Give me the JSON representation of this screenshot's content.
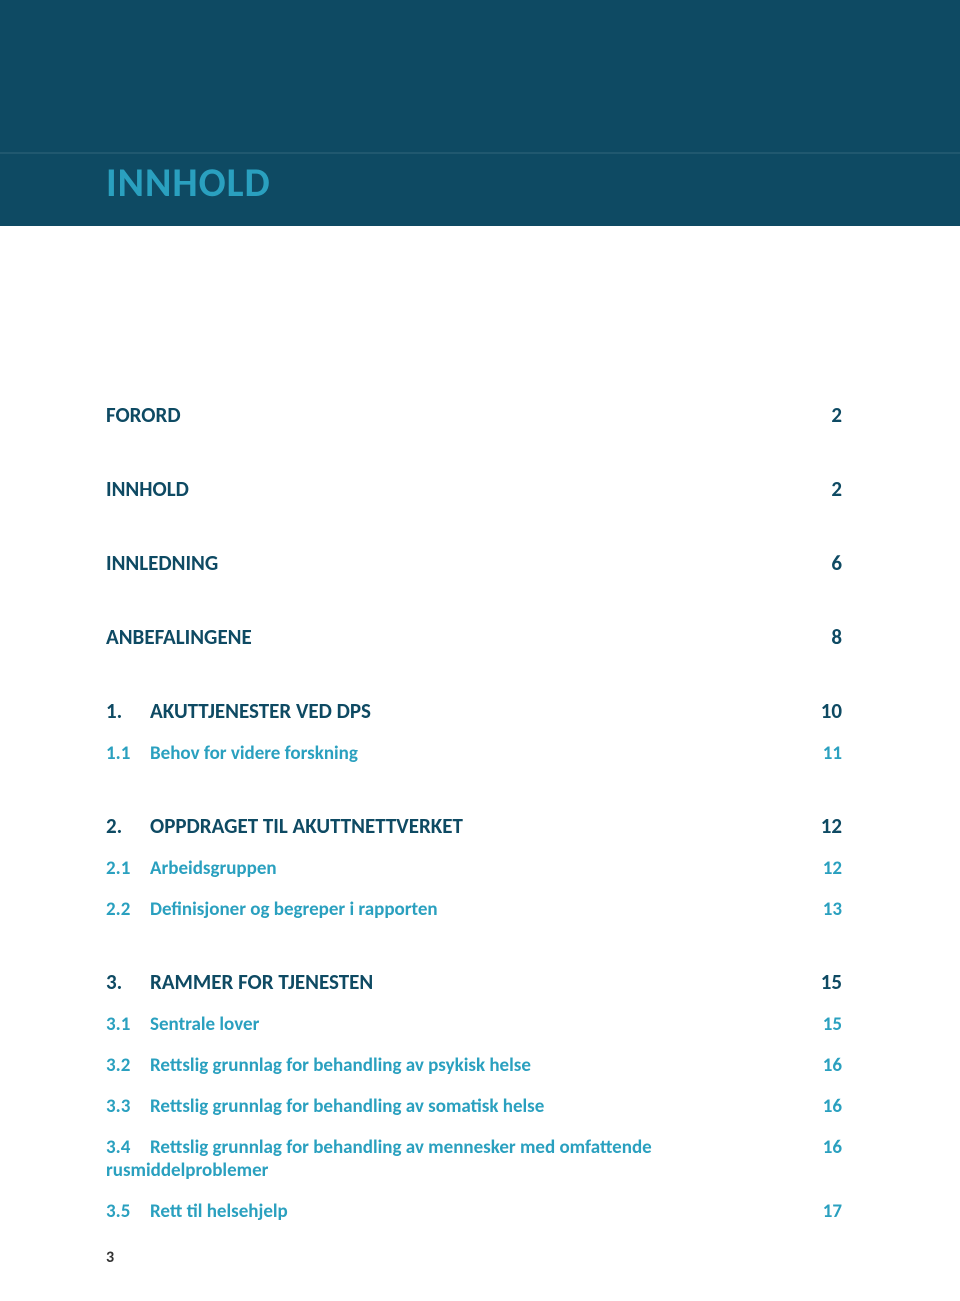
{
  "header": {
    "title": "INNHOLD",
    "banner_bg": "#0e4a63",
    "title_color": "#2aa0bf"
  },
  "colors": {
    "level0": "#0e4a63",
    "level1": "#0e4a63",
    "level2": "#2aa0bf",
    "page_bg": "#ffffff"
  },
  "toc": [
    {
      "level": 0,
      "title": "FORORD",
      "page": "2"
    },
    {
      "level": 0,
      "title": "INNHOLD",
      "page": "2"
    },
    {
      "level": 0,
      "title": "INNLEDNING",
      "page": "6"
    },
    {
      "level": 0,
      "title": "ANBEFALINGENE",
      "page": "8"
    },
    {
      "level": 1,
      "num": "1.",
      "title": "AKUTTJENESTER VED DPS",
      "page": "10"
    },
    {
      "level": 2,
      "num": "1.1",
      "title": "Behov for videre forskning",
      "page": "11"
    },
    {
      "level": 1,
      "num": "2.",
      "title": "OPPDRAGET TIL AKUTTNETTVERKET",
      "page": "12"
    },
    {
      "level": 2,
      "num": "2.1",
      "title": "Arbeidsgruppen",
      "page": "12"
    },
    {
      "level": 2,
      "num": "2.2",
      "title": "Definisjoner og begreper i rapporten",
      "page": "13"
    },
    {
      "level": 1,
      "num": "3.",
      "title": "RAMMER FOR TJENESTEN",
      "page": "15"
    },
    {
      "level": 2,
      "num": "3.1",
      "title": "Sentrale lover",
      "page": "15"
    },
    {
      "level": 2,
      "num": "3.2",
      "title": "Rettslig grunnlag for behandling av psykisk helse",
      "page": "16"
    },
    {
      "level": 2,
      "num": "3.3",
      "title": "Rettslig grunnlag for behandling av somatisk helse",
      "page": "16"
    },
    {
      "level": 2,
      "num": "3.4",
      "title": "Rettslig grunnlag for behandling av mennesker med omfattende rusmiddelproblemer",
      "page": "16"
    },
    {
      "level": 2,
      "num": "3.5",
      "title": "Rett til helsehjelp",
      "page": "17"
    }
  ],
  "footer": {
    "page_number": "3"
  }
}
